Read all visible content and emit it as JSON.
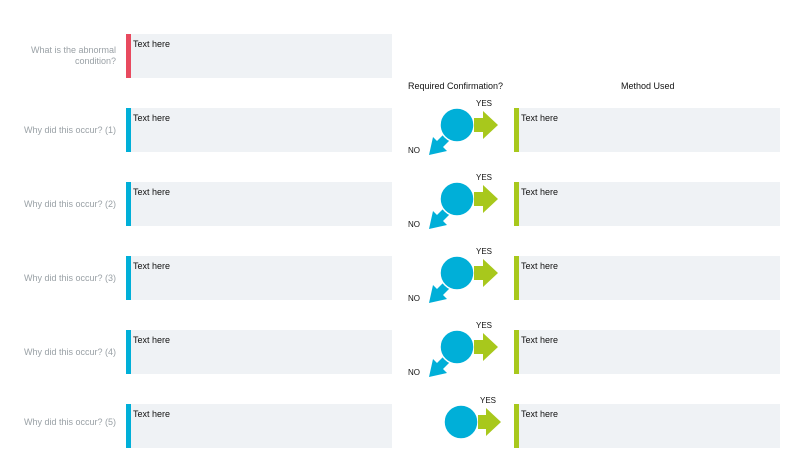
{
  "abnormal": {
    "label": "What is the abnormal condition?",
    "text": "Text here",
    "accent": "#e84a5f"
  },
  "headers": {
    "confirmation": "Required Confirmation?",
    "method": "Method Used"
  },
  "colors": {
    "why_bar": "#00afd8",
    "method_bar": "#a8c81c",
    "box_bg": "#eff2f5",
    "circle": "#00afd8",
    "yes_arrow": "#a8c81c",
    "no_arrow": "#00afd8"
  },
  "rows": [
    {
      "label": "Why did this occur? (1)",
      "text": "Text here",
      "yes": "YES",
      "no": "NO",
      "method": "Text here"
    },
    {
      "label": "Why did this occur? (2)",
      "text": "Text here",
      "yes": "YES",
      "no": "NO",
      "method": "Text here"
    },
    {
      "label": "Why did this occur? (3)",
      "text": "Text here",
      "yes": "YES",
      "no": "NO",
      "method": "Text here"
    },
    {
      "label": "Why did this occur? (4)",
      "text": "Text here",
      "yes": "YES",
      "no": "NO",
      "method": "Text here"
    },
    {
      "label": "Why did this occur? (5)",
      "text": "Text here",
      "yes": "YES",
      "method": "Text here"
    }
  ]
}
